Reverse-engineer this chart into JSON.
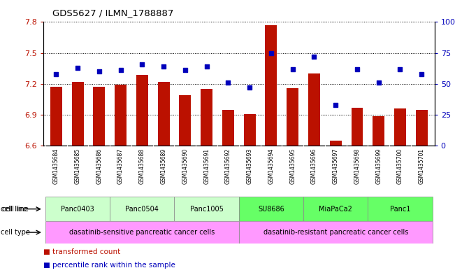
{
  "title": "GDS5627 / ILMN_1788887",
  "samples": [
    "GSM1435684",
    "GSM1435685",
    "GSM1435686",
    "GSM1435687",
    "GSM1435688",
    "GSM1435689",
    "GSM1435690",
    "GSM1435691",
    "GSM1435692",
    "GSM1435693",
    "GSM1435694",
    "GSM1435695",
    "GSM1435696",
    "GSM1435697",
    "GSM1435698",
    "GSM1435699",
    "GSM1435700",
    "GSM1435701"
  ],
  "bar_values": [
    7.17,
    7.22,
    7.17,
    7.19,
    7.29,
    7.22,
    7.09,
    7.15,
    6.95,
    6.91,
    7.77,
    7.16,
    7.3,
    6.65,
    6.97,
    6.89,
    6.96,
    6.95
  ],
  "dot_values": [
    58,
    63,
    60,
    61,
    66,
    64,
    61,
    64,
    51,
    47,
    75,
    62,
    72,
    33,
    62,
    51,
    62,
    58
  ],
  "ylim_left": [
    6.6,
    7.8
  ],
  "ylim_right": [
    0,
    100
  ],
  "yticks_left": [
    6.6,
    6.9,
    7.2,
    7.5,
    7.8
  ],
  "ytick_labels_left": [
    "6.6",
    "6.9",
    "7.2",
    "7.5",
    "7.8"
  ],
  "yticks_right": [
    0,
    25,
    50,
    75,
    100
  ],
  "ytick_labels_right": [
    "0",
    "25",
    "50",
    "75",
    "100%"
  ],
  "bar_color": "#bb1100",
  "dot_color": "#0000bb",
  "cell_line_groups": [
    {
      "name": "Panc0403",
      "indices": [
        0,
        1,
        2
      ],
      "color": "#ccffcc"
    },
    {
      "name": "Panc0504",
      "indices": [
        3,
        4,
        5
      ],
      "color": "#ccffcc"
    },
    {
      "name": "Panc1005",
      "indices": [
        6,
        7,
        8
      ],
      "color": "#ccffcc"
    },
    {
      "name": "SU8686",
      "indices": [
        9,
        10,
        11
      ],
      "color": "#66ff66"
    },
    {
      "name": "MiaPaCa2",
      "indices": [
        12,
        13,
        14
      ],
      "color": "#66ff66"
    },
    {
      "name": "Panc1",
      "indices": [
        15,
        16,
        17
      ],
      "color": "#66ff66"
    }
  ],
  "cell_type_groups": [
    {
      "name": "dasatinib-sensitive pancreatic cancer cells",
      "indices": [
        0,
        1,
        2,
        3,
        4,
        5,
        6,
        7,
        8
      ],
      "color": "#ff99ff"
    },
    {
      "name": "dasatinib-resistant pancreatic cancer cells",
      "indices": [
        9,
        10,
        11,
        12,
        13,
        14,
        15,
        16,
        17
      ],
      "color": "#ff99ff"
    }
  ]
}
